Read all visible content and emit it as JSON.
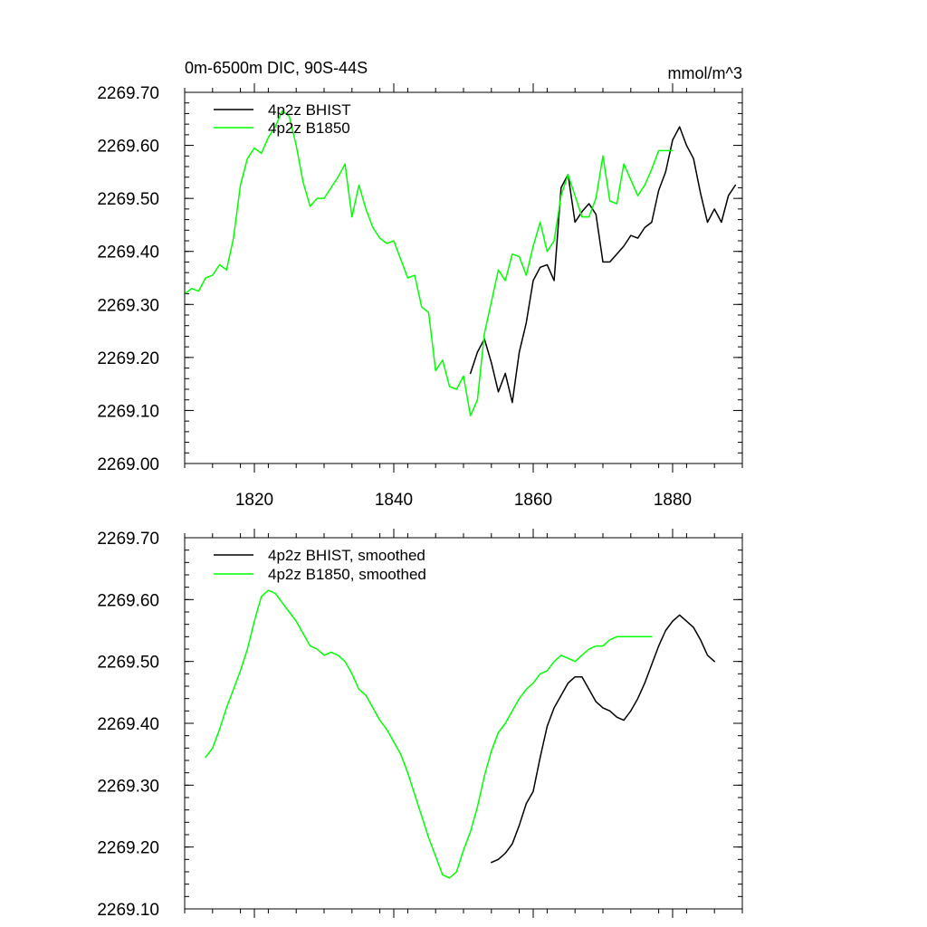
{
  "chart_data": [
    {
      "type": "line",
      "title_left": "0m-6500m DIC, 90S-44S",
      "title_right": "mmol/m^3",
      "xlabel": "",
      "ylabel": "",
      "xlim": [
        1810,
        1890
      ],
      "ylim": [
        2269.0,
        2269.7
      ],
      "xticks": [
        1820,
        1840,
        1860,
        1880
      ],
      "xtick_labels": [
        "1820",
        "1840",
        "1860",
        "1880"
      ],
      "yticks": [
        2269.0,
        2269.1,
        2269.2,
        2269.3,
        2269.4,
        2269.5,
        2269.6,
        2269.7
      ],
      "ytick_labels": [
        "2269.00",
        "2269.10",
        "2269.20",
        "2269.30",
        "2269.40",
        "2269.50",
        "2269.60",
        "2269.70"
      ],
      "legend_position": "top-left",
      "series": [
        {
          "name": "4p2z BHIST",
          "color": "#000000",
          "x": [
            1851,
            1852,
            1853,
            1854,
            1855,
            1856,
            1857,
            1858,
            1859,
            1860,
            1861,
            1862,
            1863,
            1864,
            1865,
            1866,
            1867,
            1868,
            1869,
            1870,
            1871,
            1872,
            1873,
            1874,
            1875,
            1876,
            1877,
            1878,
            1879,
            1880,
            1881,
            1882,
            1883,
            1884,
            1885,
            1886,
            1887,
            1888,
            1889
          ],
          "y": [
            2269.17,
            2269.21,
            2269.235,
            2269.19,
            2269.135,
            2269.17,
            2269.115,
            2269.21,
            2269.265,
            2269.345,
            2269.37,
            2269.375,
            2269.345,
            2269.52,
            2269.545,
            2269.455,
            2269.475,
            2269.49,
            2269.47,
            2269.38,
            2269.38,
            2269.395,
            2269.41,
            2269.43,
            2269.425,
            2269.445,
            2269.455,
            2269.515,
            2269.55,
            2269.61,
            2269.635,
            2269.6,
            2269.575,
            2269.51,
            2269.455,
            2269.48,
            2269.455,
            2269.505,
            2269.525
          ]
        },
        {
          "name": "4p2z B1850",
          "color": "#00ff00",
          "x": [
            1810,
            1811,
            1812,
            1813,
            1814,
            1815,
            1816,
            1817,
            1818,
            1819,
            1820,
            1821,
            1822,
            1823,
            1824,
            1825,
            1826,
            1827,
            1828,
            1829,
            1830,
            1831,
            1832,
            1833,
            1834,
            1835,
            1836,
            1837,
            1838,
            1839,
            1840,
            1841,
            1842,
            1843,
            1844,
            1845,
            1846,
            1847,
            1848,
            1849,
            1850,
            1851,
            1852,
            1853,
            1854,
            1855,
            1856,
            1857,
            1858,
            1859,
            1860,
            1861,
            1862,
            1863,
            1864,
            1865,
            1866,
            1867,
            1868,
            1869,
            1870,
            1871,
            1872,
            1873,
            1874,
            1875,
            1876,
            1877,
            1878,
            1879,
            1880
          ],
          "y": [
            2269.32,
            2269.33,
            2269.325,
            2269.35,
            2269.355,
            2269.375,
            2269.365,
            2269.425,
            2269.525,
            2269.575,
            2269.595,
            2269.585,
            2269.615,
            2269.635,
            2269.665,
            2269.655,
            2269.6,
            2269.53,
            2269.485,
            2269.5,
            2269.5,
            2269.52,
            2269.54,
            2269.565,
            2269.465,
            2269.525,
            2269.48,
            2269.445,
            2269.425,
            2269.415,
            2269.42,
            2269.385,
            2269.35,
            2269.355,
            2269.295,
            2269.285,
            2269.175,
            2269.195,
            2269.145,
            2269.14,
            2269.165,
            2269.09,
            2269.12,
            2269.245,
            2269.305,
            2269.365,
            2269.345,
            2269.395,
            2269.39,
            2269.355,
            2269.41,
            2269.455,
            2269.4,
            2269.42,
            2269.505,
            2269.545,
            2269.505,
            2269.465,
            2269.465,
            2269.5,
            2269.58,
            2269.495,
            2269.49,
            2269.565,
            2269.535,
            2269.505,
            2269.525,
            2269.555,
            2269.59,
            2269.59,
            2269.59
          ]
        }
      ]
    },
    {
      "type": "line",
      "title_left": "",
      "title_right": "",
      "xlabel": "",
      "ylabel": "",
      "xlim": [
        1810,
        1890
      ],
      "ylim": [
        2269.1,
        2269.7
      ],
      "xticks": [
        1820,
        1840,
        1860,
        1880
      ],
      "xtick_labels": [],
      "yticks": [
        2269.1,
        2269.2,
        2269.3,
        2269.4,
        2269.5,
        2269.6,
        2269.7
      ],
      "ytick_labels": [
        "2269.10",
        "2269.20",
        "2269.30",
        "2269.40",
        "2269.50",
        "2269.60",
        "2269.70"
      ],
      "legend_position": "top-left",
      "series": [
        {
          "name": "4p2z BHIST, smoothed",
          "color": "#000000",
          "x": [
            1854,
            1855,
            1856,
            1857,
            1858,
            1859,
            1860,
            1861,
            1862,
            1863,
            1864,
            1865,
            1866,
            1867,
            1868,
            1869,
            1870,
            1871,
            1872,
            1873,
            1874,
            1875,
            1876,
            1877,
            1878,
            1879,
            1880,
            1881,
            1882,
            1883,
            1884,
            1885,
            1886
          ],
          "y": [
            2269.175,
            2269.18,
            2269.19,
            2269.205,
            2269.235,
            2269.27,
            2269.29,
            2269.345,
            2269.395,
            2269.425,
            2269.445,
            2269.465,
            2269.475,
            2269.475,
            2269.455,
            2269.435,
            2269.425,
            2269.42,
            2269.41,
            2269.405,
            2269.42,
            2269.44,
            2269.465,
            2269.495,
            2269.525,
            2269.55,
            2269.565,
            2269.575,
            2269.565,
            2269.555,
            2269.535,
            2269.51,
            2269.5
          ]
        },
        {
          "name": "4p2z B1850, smoothed",
          "color": "#00ff00",
          "x": [
            1813,
            1814,
            1815,
            1816,
            1817,
            1818,
            1819,
            1820,
            1821,
            1822,
            1823,
            1824,
            1825,
            1826,
            1827,
            1828,
            1829,
            1830,
            1831,
            1832,
            1833,
            1834,
            1835,
            1836,
            1837,
            1838,
            1839,
            1840,
            1841,
            1842,
            1843,
            1844,
            1845,
            1846,
            1847,
            1848,
            1849,
            1850,
            1851,
            1852,
            1853,
            1854,
            1855,
            1856,
            1857,
            1858,
            1859,
            1860,
            1861,
            1862,
            1863,
            1864,
            1865,
            1866,
            1867,
            1868,
            1869,
            1870,
            1871,
            1872,
            1873,
            1874,
            1875,
            1876,
            1877
          ],
          "y": [
            2269.345,
            2269.36,
            2269.39,
            2269.425,
            2269.455,
            2269.485,
            2269.52,
            2269.565,
            2269.605,
            2269.615,
            2269.61,
            2269.595,
            2269.58,
            2269.565,
            2269.545,
            2269.525,
            2269.52,
            2269.51,
            2269.515,
            2269.51,
            2269.5,
            2269.48,
            2269.455,
            2269.445,
            2269.425,
            2269.405,
            2269.39,
            2269.37,
            2269.35,
            2269.32,
            2269.285,
            2269.25,
            2269.215,
            2269.185,
            2269.155,
            2269.15,
            2269.16,
            2269.195,
            2269.225,
            2269.265,
            2269.315,
            2269.355,
            2269.385,
            2269.4,
            2269.42,
            2269.44,
            2269.455,
            2269.465,
            2269.48,
            2269.485,
            2269.5,
            2269.51,
            2269.505,
            2269.5,
            2269.51,
            2269.52,
            2269.525,
            2269.525,
            2269.535,
            2269.54,
            2269.54,
            2269.54,
            2269.54,
            2269.54,
            2269.54
          ]
        }
      ]
    }
  ]
}
